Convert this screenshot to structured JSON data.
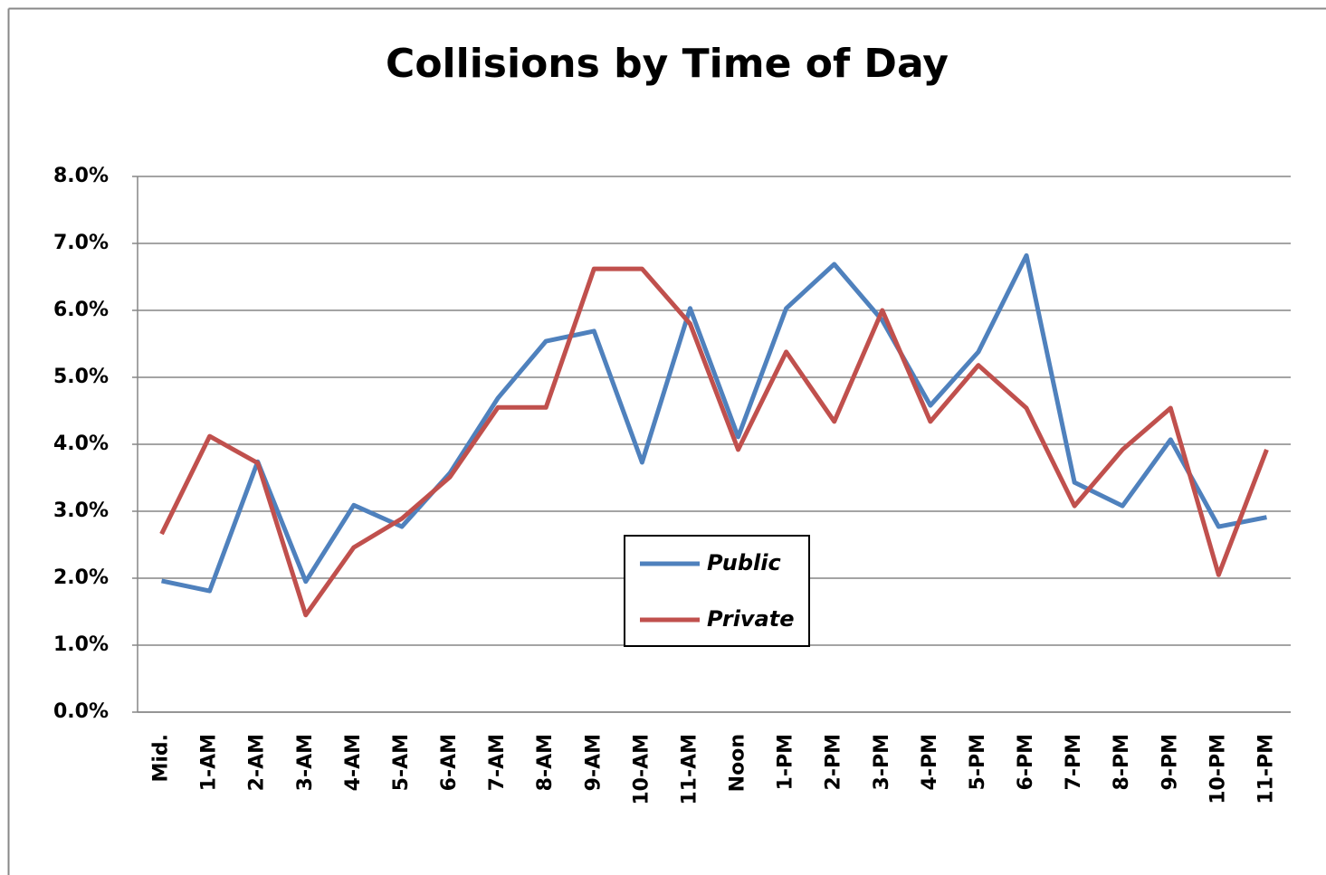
{
  "chart_data": {
    "type": "line",
    "title": "Collisions by Time of Day",
    "categories": [
      "Mid.",
      "1-AM",
      "2-AM",
      "3-AM",
      "4-AM",
      "5-AM",
      "6-AM",
      "7-AM",
      "8-AM",
      "9-AM",
      "10-AM",
      "11-AM",
      "Noon",
      "1-PM",
      "2-PM",
      "3-PM",
      "4-PM",
      "5-PM",
      "6-PM",
      "7-PM",
      "8-PM",
      "9-PM",
      "10-PM",
      "11-PM"
    ],
    "series": [
      {
        "name": "Public",
        "color": "#4f81bd",
        "values": [
          1.96,
          1.81,
          3.74,
          1.95,
          3.09,
          2.77,
          3.57,
          4.69,
          5.54,
          5.69,
          3.73,
          6.03,
          4.11,
          6.03,
          6.69,
          5.85,
          4.58,
          5.38,
          6.82,
          3.43,
          3.08,
          4.07,
          2.77,
          2.91
        ]
      },
      {
        "name": "Private",
        "color": "#c0504d",
        "values": [
          2.66,
          4.12,
          3.72,
          1.45,
          2.46,
          2.89,
          3.51,
          4.55,
          4.55,
          6.62,
          6.62,
          5.8,
          3.92,
          5.38,
          4.34,
          6.0,
          4.34,
          5.18,
          4.54,
          3.08,
          3.92,
          4.54,
          2.05,
          3.92
        ]
      }
    ],
    "ylim": [
      0,
      8
    ],
    "yticks": [
      {
        "value": 0,
        "label": "0.0%"
      },
      {
        "value": 1,
        "label": "1.0%"
      },
      {
        "value": 2,
        "label": "2.0%"
      },
      {
        "value": 3,
        "label": "3.0%"
      },
      {
        "value": 4,
        "label": "4.0%"
      },
      {
        "value": 5,
        "label": "5.0%"
      },
      {
        "value": 6,
        "label": "6.0%"
      },
      {
        "value": 7,
        "label": "7.0%"
      },
      {
        "value": 8,
        "label": "8.0%"
      }
    ],
    "grid": true,
    "legend": "center"
  }
}
